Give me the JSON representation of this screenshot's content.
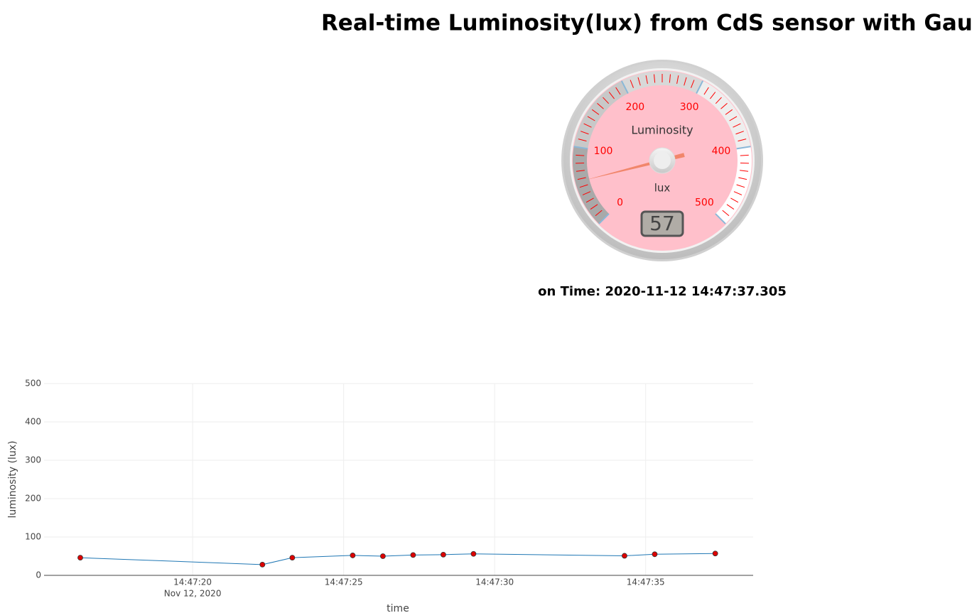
{
  "page": {
    "title": "Real-time Luminosity(lux) from CdS sensor with Gauge",
    "time_label": "on Time: 2020-11-12 14:47:37.305"
  },
  "chart_data": [
    {
      "type": "gauge",
      "title": "Luminosity",
      "units": "lux",
      "min": 0,
      "max": 500,
      "ticks": [
        0,
        100,
        200,
        300,
        400,
        500
      ],
      "minor_ticks_per_major": 10,
      "value": 57,
      "tick_color": "#ff0000",
      "plate_color": "#ffc0cb",
      "needle_color": "#f08060",
      "highlights": [
        {
          "from": 0,
          "to": 100,
          "color": "#a9a9a9"
        },
        {
          "from": 100,
          "to": 200,
          "color": "#c8c8c8"
        },
        {
          "from": 200,
          "to": 300,
          "color": "#d8d8d8"
        },
        {
          "from": 300,
          "to": 400,
          "color": "#eeeeee"
        },
        {
          "from": 400,
          "to": 500,
          "color": "#ffffff"
        }
      ]
    },
    {
      "type": "line",
      "x_label": "time",
      "y_label": "luminosity (lux)",
      "x": [
        "2020-11-12 14:47:16.280",
        "2020-11-12 14:47:22.310",
        "2020-11-12 14:47:23.300",
        "2020-11-12 14:47:25.300",
        "2020-11-12 14:47:26.300",
        "2020-11-12 14:47:27.300",
        "2020-11-12 14:47:28.300",
        "2020-11-12 14:47:29.300",
        "2020-11-12 14:47:34.300",
        "2020-11-12 14:47:35.300",
        "2020-11-12 14:47:37.305"
      ],
      "values": [
        46,
        28,
        46,
        52,
        50,
        53,
        54,
        56,
        51,
        55,
        57
      ],
      "color": "#1f77b4",
      "marker_color": "#dd0000",
      "xlim": [
        "2020-11-12 14:47:15.080",
        "2020-11-12 14:47:38.560"
      ],
      "xticks": [
        {
          "value": "2020-11-12 14:47:20",
          "label": "14:47:20"
        },
        {
          "value": "2020-11-12 14:47:25",
          "label": "14:47:25"
        },
        {
          "value": "2020-11-12 14:47:30",
          "label": "14:47:30"
        },
        {
          "value": "2020-11-12 14:47:35",
          "label": "14:47:35"
        }
      ],
      "x_date_label": "Nov 12, 2020",
      "ylim": [
        0,
        500
      ],
      "yticks": [
        0,
        100,
        200,
        300,
        400,
        500
      ],
      "grid": true
    }
  ]
}
